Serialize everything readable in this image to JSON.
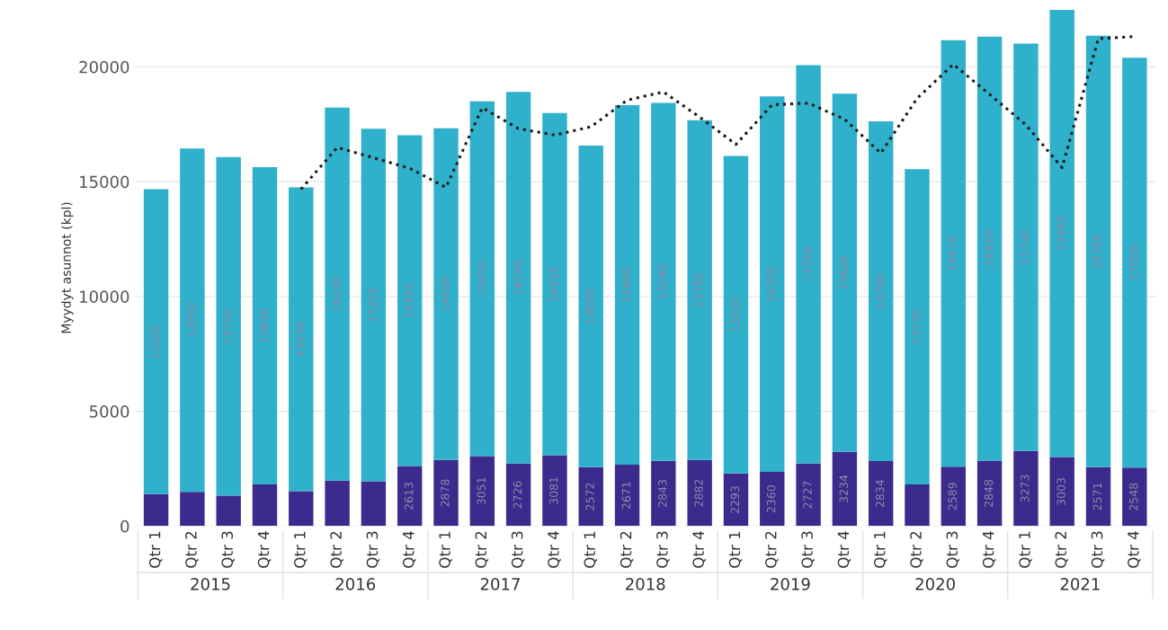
{
  "chart_data": {
    "type": "bar",
    "stacked": true,
    "ylabel": "Myydyt asunnot (kpl)",
    "categories": [
      "Qtr 1",
      "Qtr 2",
      "Qtr 3",
      "Qtr 4",
      "Qtr 1",
      "Qtr 2",
      "Qtr 3",
      "Qtr 4",
      "Qtr 1",
      "Qtr 2",
      "Qtr 3",
      "Qtr 4",
      "Qtr 1",
      "Qtr 2",
      "Qtr 3",
      "Qtr 4",
      "Qtr 1",
      "Qtr 2",
      "Qtr 3",
      "Qtr 4",
      "Qtr 1",
      "Qtr 2",
      "Qtr 3",
      "Qtr 4",
      "Qtr 1",
      "Qtr 2",
      "Qtr 3",
      "Qtr 4"
    ],
    "series": [
      {
        "color": "#3c2a8c",
        "values": [
          1390,
          1490,
          1320,
          1810,
          1520,
          1980,
          1950,
          2613,
          2878,
          3051,
          2726,
          3081,
          2572,
          2671,
          2843,
          2882,
          2293,
          2360,
          2727,
          3234,
          2834,
          1810,
          2589,
          2848,
          3273,
          3003,
          2571,
          2548
        ],
        "value_labels": [
          null,
          null,
          null,
          null,
          null,
          null,
          null,
          "2613",
          "2878",
          "3051",
          "2726",
          "3081",
          "2572",
          "2671",
          "2843",
          "2882",
          "2293",
          "2360",
          "2727",
          "3234",
          "2834",
          null,
          "2589",
          "2848",
          "3273",
          "3003",
          "2571",
          "2548"
        ]
      },
      {
        "color": "#2fb0cb",
        "values": [
          13280,
          14950,
          14750,
          13820,
          13230,
          16240,
          15350,
          14410,
          14450,
          15450,
          16180,
          14910,
          14000,
          15660,
          15590,
          14790,
          13830,
          16350,
          17350,
          15600,
          14790,
          13730,
          18570,
          18470,
          17740,
          19480,
          18780,
          17850
        ],
        "value_labels": [
          "13280",
          "14950",
          "14750",
          "13820",
          "13230",
          "16240",
          "15350",
          "14410",
          "14450",
          "15450",
          "16180",
          "14910",
          "14000",
          "15660",
          "15590",
          "14790",
          "13830",
          "16350",
          "17350",
          "15600",
          "14790",
          "13730",
          "18570",
          "18470",
          "17740",
          "19480",
          "18780",
          "17850"
        ]
      },
      {
        "type": "line",
        "color": "#1a1a1a",
        "line_style": "dotted",
        "values": [
          null,
          null,
          null,
          null,
          14670,
          16490,
          16040,
          15580,
          14750,
          18220,
          17310,
          17030,
          17390,
          18550,
          18910,
          17810,
          16620,
          18350,
          18420,
          17720,
          16240,
          18630,
          20110,
          18800,
          17480,
          15610,
          21230,
          21320
        ]
      }
    ],
    "annotations": [
      "2015",
      "2016",
      "2017",
      "2018",
      "2019",
      "2020",
      "2021"
    ],
    "ylim": [
      0,
      22500
    ],
    "yticks": [
      0,
      5000,
      10000,
      15000,
      20000
    ],
    "grid": "y",
    "legend": false
  }
}
